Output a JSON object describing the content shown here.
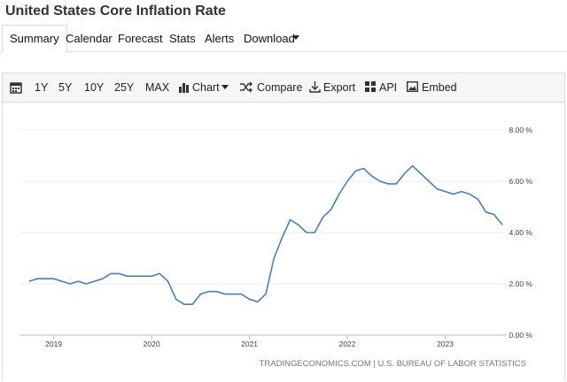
{
  "header": {
    "title": "United States Core Inflation Rate"
  },
  "tabs": [
    "Summary",
    "Calendar",
    "Forecast",
    "Stats",
    "Alerts",
    "Download"
  ],
  "toolbar": [
    "1Y",
    "5Y",
    "10Y",
    "25Y",
    "MAX",
    "Chart",
    "Compare",
    "Export",
    "API",
    "Embed"
  ],
  "source": "TRADINGECONOMICS.COM | U.S. BUREAU OF LABOR STATISTICS",
  "chart_data": {
    "type": "line",
    "color": "#4a7fb5",
    "grid": true,
    "categories": [
      null,
      null,
      null,
      "2019",
      null,
      null,
      null,
      null,
      null,
      null,
      null,
      null,
      null,
      null,
      null,
      "2020",
      null,
      null,
      null,
      null,
      null,
      null,
      null,
      null,
      null,
      null,
      null,
      "2021",
      null,
      null,
      null,
      null,
      null,
      null,
      null,
      null,
      null,
      null,
      null,
      "2022",
      null,
      null,
      null,
      null,
      null,
      null,
      null,
      null,
      null,
      null,
      null,
      "2023",
      null,
      null,
      null,
      null,
      null,
      null,
      null
    ],
    "values": [
      2.1,
      2.2,
      2.2,
      2.2,
      2.1,
      2.0,
      2.1,
      2.0,
      2.1,
      2.2,
      2.4,
      2.4,
      2.3,
      2.3,
      2.3,
      2.3,
      2.4,
      2.1,
      1.4,
      1.2,
      1.2,
      1.6,
      1.7,
      1.7,
      1.6,
      1.6,
      1.6,
      1.4,
      1.3,
      1.6,
      3.0,
      3.8,
      4.5,
      4.3,
      4.0,
      4.0,
      4.6,
      4.9,
      5.5,
      6.0,
      6.4,
      6.5,
      6.2,
      6.0,
      5.9,
      5.9,
      6.3,
      6.6,
      6.3,
      6.0,
      5.7,
      5.6,
      5.5,
      5.6,
      5.5,
      5.3,
      4.8,
      4.7,
      4.3
    ],
    "ylim": [
      0,
      8
    ],
    "yticks": [
      {
        "value": 0,
        "label": "0.00 %"
      },
      {
        "value": 2,
        "label": "2.00 %"
      },
      {
        "value": 4,
        "label": "4.00 %"
      },
      {
        "value": 6,
        "label": "6.00 %"
      },
      {
        "value": 8,
        "label": "8.00 %"
      }
    ]
  }
}
